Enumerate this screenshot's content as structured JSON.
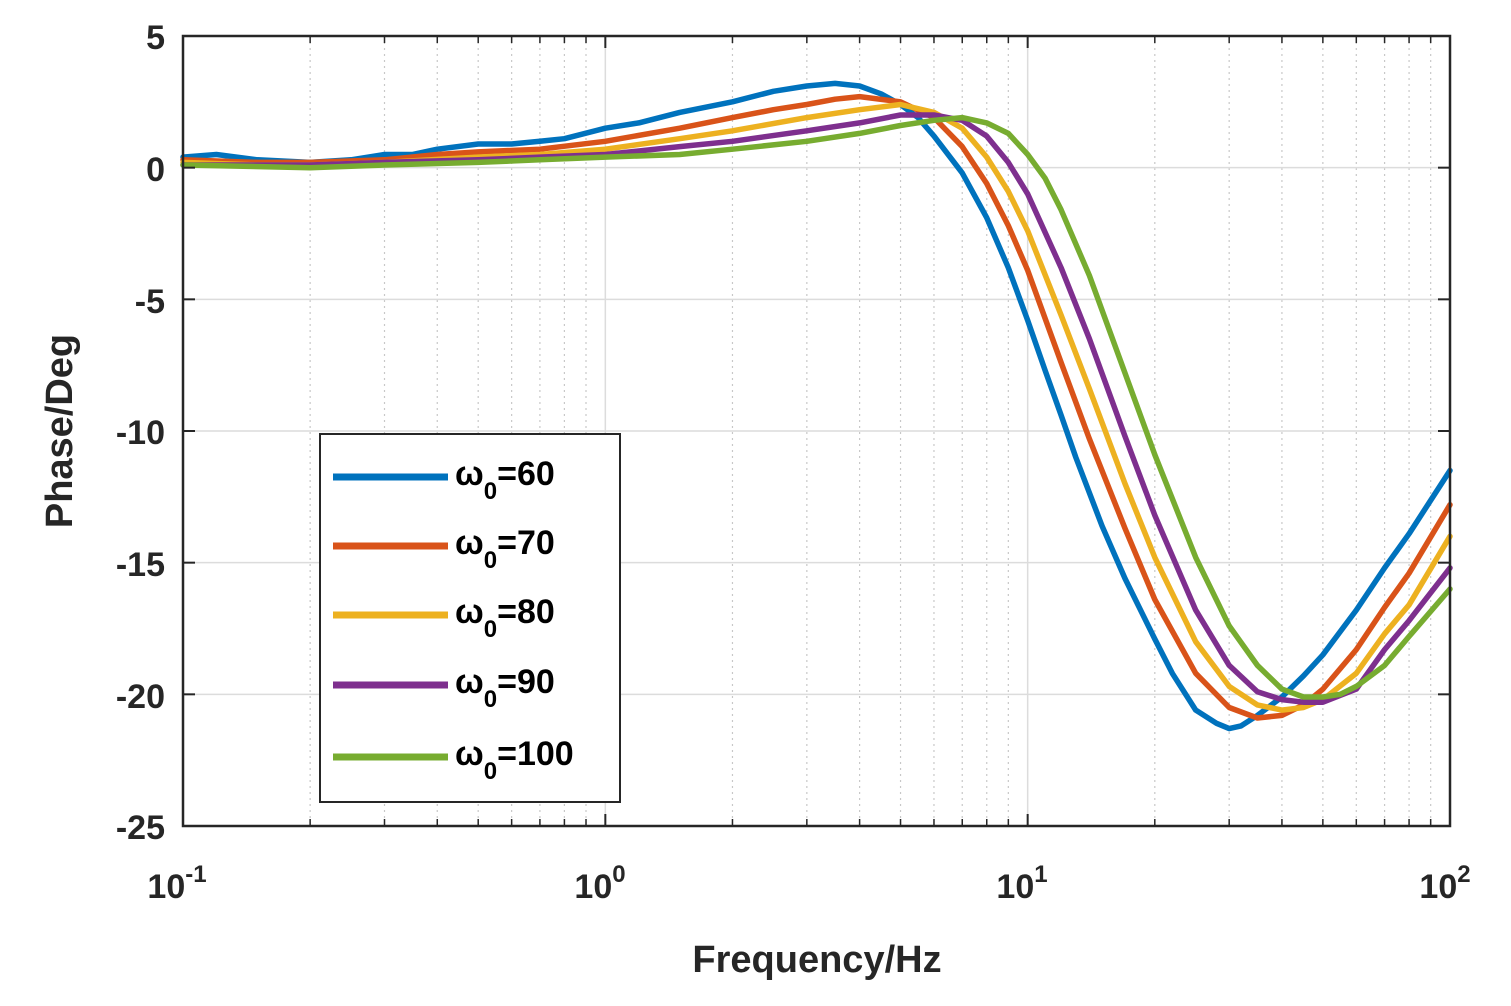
{
  "chart_data": {
    "type": "line",
    "xscale": "log",
    "xlim": [
      0.1,
      100
    ],
    "ylim": [
      -25,
      5
    ],
    "xlabel": "Frequency/Hz",
    "ylabel": "Phase/Deg",
    "grid": true,
    "legend_position": "lower-left",
    "xticks": [
      {
        "base": "10",
        "exp": "-1",
        "value": 0.1
      },
      {
        "base": "10",
        "exp": "0",
        "value": 1
      },
      {
        "base": "10",
        "exp": "1",
        "value": 10
      },
      {
        "base": "10",
        "exp": "2",
        "value": 100
      }
    ],
    "yticks": [
      {
        "label": "5",
        "value": 5
      },
      {
        "label": "0",
        "value": 0
      },
      {
        "label": "-5",
        "value": -5
      },
      {
        "label": "-10",
        "value": -10
      },
      {
        "label": "-15",
        "value": -15
      },
      {
        "label": "-20",
        "value": -20
      },
      {
        "label": "-25",
        "value": -25
      }
    ],
    "series": [
      {
        "name": "ω0=60",
        "symbol": "ω",
        "sub": "0",
        "eq": "=60",
        "color": "#0072BD",
        "x": [
          0.1,
          0.12,
          0.15,
          0.2,
          0.25,
          0.3,
          0.35,
          0.4,
          0.5,
          0.6,
          0.7,
          0.8,
          1.0,
          1.2,
          1.5,
          2.0,
          2.5,
          3.0,
          3.5,
          4.0,
          4.5,
          5.0,
          5.5,
          6.0,
          7.0,
          8.0,
          9.0,
          10,
          11,
          12,
          13,
          15,
          17,
          20,
          22,
          25,
          28,
          30,
          32,
          35,
          40,
          45,
          50,
          60,
          70,
          80,
          100
        ],
        "y": [
          0.4,
          0.5,
          0.3,
          0.2,
          0.3,
          0.5,
          0.5,
          0.7,
          0.9,
          0.9,
          1.0,
          1.1,
          1.5,
          1.7,
          2.1,
          2.5,
          2.9,
          3.1,
          3.2,
          3.1,
          2.8,
          2.4,
          1.9,
          1.2,
          -0.2,
          -1.9,
          -3.8,
          -5.8,
          -7.7,
          -9.4,
          -11.0,
          -13.6,
          -15.6,
          -17.9,
          -19.2,
          -20.6,
          -21.1,
          -21.3,
          -21.2,
          -20.8,
          -20.1,
          -19.3,
          -18.5,
          -16.8,
          -15.2,
          -13.9,
          -11.5
        ]
      },
      {
        "name": "ω0=70",
        "symbol": "ω",
        "sub": "0",
        "eq": "=70",
        "color": "#D95319",
        "x": [
          0.1,
          0.15,
          0.2,
          0.3,
          0.4,
          0.5,
          0.7,
          1.0,
          1.5,
          2.0,
          2.5,
          3.0,
          3.5,
          4.0,
          5.0,
          6.0,
          7.0,
          8.0,
          9.0,
          10,
          12,
          14,
          17,
          20,
          25,
          30,
          35,
          40,
          45,
          50,
          60,
          70,
          80,
          100
        ],
        "y": [
          0.3,
          0.2,
          0.2,
          0.3,
          0.5,
          0.6,
          0.7,
          1.0,
          1.5,
          1.9,
          2.2,
          2.4,
          2.6,
          2.7,
          2.5,
          1.9,
          0.8,
          -0.6,
          -2.2,
          -3.9,
          -7.4,
          -10.3,
          -13.7,
          -16.4,
          -19.2,
          -20.5,
          -20.9,
          -20.8,
          -20.4,
          -19.8,
          -18.3,
          -16.7,
          -15.4,
          -12.8
        ]
      },
      {
        "name": "ω0=80",
        "symbol": "ω",
        "sub": "0",
        "eq": "=80",
        "color": "#EDB120",
        "x": [
          0.1,
          0.15,
          0.2,
          0.3,
          0.5,
          0.7,
          1.0,
          1.5,
          2.0,
          3.0,
          4.0,
          5.0,
          6.0,
          7.0,
          8.0,
          9.0,
          10,
          12,
          14,
          17,
          20,
          25,
          30,
          35,
          40,
          45,
          50,
          60,
          70,
          80,
          100
        ],
        "y": [
          0.2,
          0.1,
          0.1,
          0.2,
          0.4,
          0.5,
          0.7,
          1.1,
          1.4,
          1.9,
          2.2,
          2.4,
          2.1,
          1.5,
          0.4,
          -0.9,
          -2.4,
          -5.6,
          -8.4,
          -12.0,
          -14.8,
          -18.0,
          -19.7,
          -20.4,
          -20.6,
          -20.5,
          -20.2,
          -19.2,
          -17.7,
          -16.6,
          -14.0
        ]
      },
      {
        "name": "ω0=90",
        "symbol": "ω",
        "sub": "0",
        "eq": "=90",
        "color": "#7E2F8E",
        "x": [
          0.1,
          0.2,
          0.3,
          0.5,
          0.7,
          1.0,
          1.5,
          2.0,
          3.0,
          4.0,
          5.0,
          6.0,
          7.0,
          8.0,
          9.0,
          10,
          12,
          14,
          17,
          20,
          25,
          30,
          35,
          40,
          45,
          50,
          60,
          70,
          80,
          100
        ],
        "y": [
          0.1,
          0.1,
          0.2,
          0.3,
          0.4,
          0.5,
          0.8,
          1.0,
          1.4,
          1.7,
          2.0,
          2.0,
          1.8,
          1.2,
          0.2,
          -1.0,
          -3.8,
          -6.5,
          -10.2,
          -13.2,
          -16.8,
          -18.9,
          -19.9,
          -20.2,
          -20.3,
          -20.3,
          -19.8,
          -18.3,
          -17.2,
          -15.2
        ]
      },
      {
        "name": "ω0=100",
        "symbol": "ω",
        "sub": "0",
        "eq": "=100",
        "color": "#77AC30",
        "x": [
          0.1,
          0.2,
          0.3,
          0.5,
          0.7,
          1.0,
          1.5,
          2.0,
          3.0,
          4.0,
          5.0,
          6.0,
          7.0,
          8.0,
          9.0,
          10,
          11,
          12,
          14,
          17,
          20,
          25,
          30,
          35,
          40,
          45,
          50,
          55,
          60,
          70,
          80,
          100
        ],
        "y": [
          0.1,
          0.0,
          0.1,
          0.2,
          0.3,
          0.4,
          0.5,
          0.7,
          1.0,
          1.3,
          1.6,
          1.8,
          1.9,
          1.7,
          1.3,
          0.5,
          -0.4,
          -1.6,
          -4.1,
          -7.8,
          -10.9,
          -14.8,
          -17.4,
          -18.9,
          -19.8,
          -20.1,
          -20.1,
          -20.0,
          -19.7,
          -18.9,
          -17.8,
          -16.0
        ]
      }
    ]
  }
}
